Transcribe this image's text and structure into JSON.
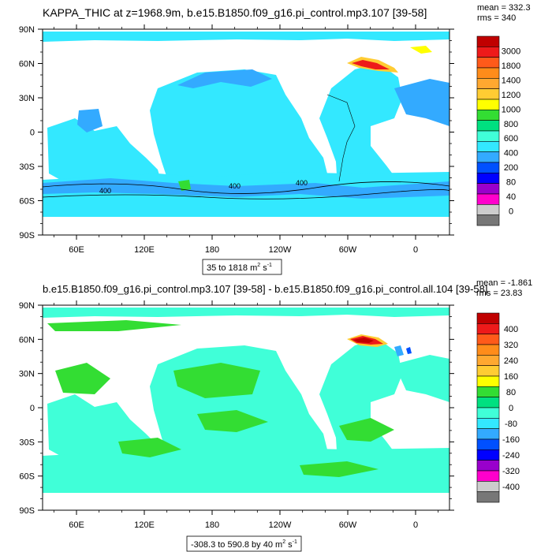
{
  "panels": [
    {
      "title": "KAPPA_THIC at z=1968.9m, b.e15.B1850.f09_g16.pi_control.mp3.107 [39-58]",
      "stats": {
        "mean": "mean = 332.3",
        "rms": "rms = 340"
      },
      "range_label": "35 to 1818",
      "contour_labels": [
        "400",
        "400",
        "400"
      ],
      "colorbar": {
        "labels": [
          "3000",
          "1800",
          "1400",
          "1200",
          "1000",
          "800",
          "600",
          "400",
          "200",
          "80",
          "40",
          "0"
        ],
        "colors": [
          "#c00000",
          "#ee1a1a",
          "#ff5a1a",
          "#ff8c1a",
          "#ffa830",
          "#ffcc33",
          "#ffff00",
          "#33dd33",
          "#00e080",
          "#40ffd8",
          "#33e8ff",
          "#33aaff",
          "#0050ff",
          "#0000ff",
          "#9900cc",
          "#ff00cc",
          "#cccccc",
          "#777777"
        ]
      },
      "chart_data": {
        "type": "heatmap",
        "variable": "KAPPA_THIC",
        "depth": "z=1968.9m",
        "case": "b.e15.B1850.f09_g16.pi_control.mp3.107",
        "years": "[39-58]",
        "x_ticks": [
          "60E",
          "120E",
          "180",
          "120W",
          "60W",
          "0"
        ],
        "y_ticks": [
          "90N",
          "60N",
          "30N",
          "0",
          "30S",
          "60S",
          "90S"
        ],
        "value_min": 35,
        "value_max": 1818,
        "units": "m2 s-1",
        "mean": 332.3,
        "rms": 340,
        "contour_levels": [
          80,
          200,
          400,
          600,
          800,
          1000,
          1200,
          1400,
          1800,
          3000
        ]
      }
    },
    {
      "title": "b.e15.B1850.f09_g16.pi_control.mp3.107 [39-58] - b.e15.B1850.f09_g16.pi_control.all.104 [39-58]",
      "stats": {
        "mean": "mean = -1.861",
        "rms": "rms = 23.83"
      },
      "range_label": "-308.3 to 590.8 by 40",
      "colorbar": {
        "labels": [
          "400",
          "320",
          "240",
          "160",
          "80",
          "0",
          "-80",
          "-160",
          "-240",
          "-320",
          "-400"
        ],
        "colors": [
          "#c00000",
          "#ee1a1a",
          "#ff5a1a",
          "#ff8c1a",
          "#ffa830",
          "#ffcc33",
          "#ffff00",
          "#33dd33",
          "#00e080",
          "#40ffd8",
          "#33e8ff",
          "#33aaff",
          "#0050ff",
          "#0000ff",
          "#9900cc",
          "#ff00cc",
          "#cccccc",
          "#777777"
        ]
      },
      "chart_data": {
        "type": "heatmap",
        "case_a": "b.e15.B1850.f09_g16.pi_control.mp3.107 [39-58]",
        "case_b": "b.e15.B1850.f09_g16.pi_control.all.104 [39-58]",
        "x_ticks": [
          "60E",
          "120E",
          "180",
          "120W",
          "60W",
          "0"
        ],
        "y_ticks": [
          "90N",
          "60N",
          "30N",
          "0",
          "30S",
          "60S",
          "90S"
        ],
        "value_min": -308.3,
        "value_max": 590.8,
        "contour_interval": 40,
        "units": "m2 s-1",
        "mean": -1.861,
        "rms": 23.83,
        "contour_levels": [
          -400,
          -320,
          -240,
          -160,
          -80,
          0,
          80,
          160,
          240,
          320,
          400
        ]
      }
    }
  ],
  "units": {
    "base": "m",
    "sup1": "2",
    "mid": " s",
    "sup2": "-1"
  }
}
